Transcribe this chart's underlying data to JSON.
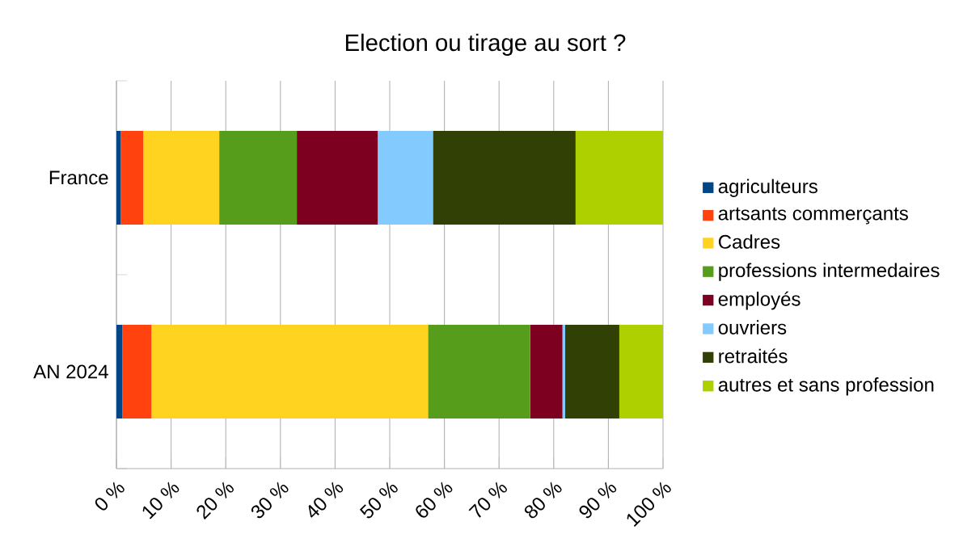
{
  "chart_data": {
    "type": "bar",
    "orientation": "horizontal",
    "stacked": true,
    "title": "Election ou tirage au sort ?",
    "categories": [
      "France",
      "AN 2024"
    ],
    "series": [
      {
        "name": "agriculteurs",
        "color": "#004586",
        "values": [
          0.8,
          1.1
        ]
      },
      {
        "name": "artsants commerçants",
        "color": "#ff420e",
        "values": [
          4.1,
          5.3
        ]
      },
      {
        "name": "Cadres",
        "color": "#ffd320",
        "values": [
          13.9,
          50.6
        ]
      },
      {
        "name": "professions intermedaires",
        "color": "#579d1c",
        "values": [
          14.2,
          18.7
        ]
      },
      {
        "name": "employés",
        "color": "#7e0021",
        "values": [
          14.8,
          5.9
        ]
      },
      {
        "name": "ouvriers",
        "color": "#83caff",
        "values": [
          10.1,
          0.5
        ]
      },
      {
        "name": "retraités",
        "color": "#314004",
        "values": [
          26.1,
          9.9
        ]
      },
      {
        "name": "autres et sans profession",
        "color": "#aecf00",
        "values": [
          16.0,
          8.0
        ]
      }
    ],
    "xlim": [
      0,
      100
    ],
    "xticks": [
      {
        "value": 0,
        "label": "0 %"
      },
      {
        "value": 10,
        "label": "10 %"
      },
      {
        "value": 20,
        "label": "20 %"
      },
      {
        "value": 30,
        "label": "30 %"
      },
      {
        "value": 40,
        "label": "40 %"
      },
      {
        "value": 50,
        "label": "50 %"
      },
      {
        "value": 60,
        "label": "60 %"
      },
      {
        "value": 70,
        "label": "70 %"
      },
      {
        "value": 80,
        "label": "80 %"
      },
      {
        "value": 90,
        "label": "90 %"
      },
      {
        "value": 100,
        "label": "100 %"
      }
    ],
    "grid": "x",
    "legend": "right"
  }
}
